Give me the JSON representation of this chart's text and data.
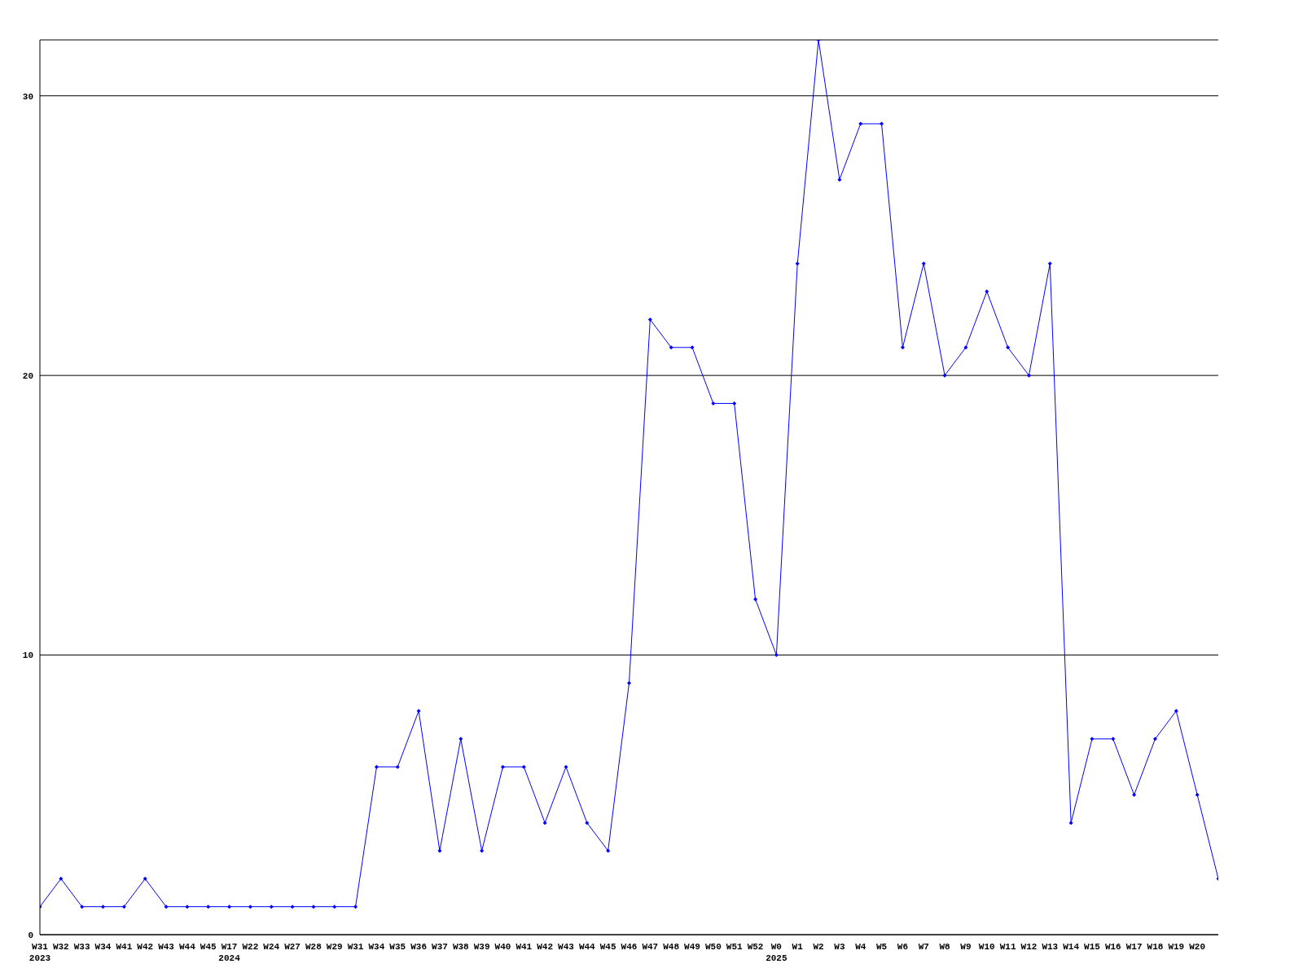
{
  "chart_data": {
    "type": "line",
    "categories": [
      "W31\n2023",
      "W32",
      "W33",
      "W34",
      "W41",
      "W42",
      "W43",
      "W44",
      "W45",
      "W17\n2024",
      "W22",
      "W24",
      "W27",
      "W28",
      "W29",
      "W31",
      "W34",
      "W35",
      "W36",
      "W37",
      "W38",
      "W39",
      "W40",
      "W41",
      "W42",
      "W43",
      "W44",
      "W45",
      "W46",
      "W47",
      "W48",
      "W49",
      "W50",
      "W51",
      "W52",
      "W0\n2025",
      "W1",
      "W2",
      "W3",
      "W4",
      "W5",
      "W6",
      "W7",
      "W8",
      "W9",
      "W10",
      "W11",
      "W12",
      "W13",
      "W14",
      "W15",
      "W16",
      "W17",
      "W18",
      "W19",
      "W20",
      null
    ],
    "series": [
      {
        "color": "#0000ff",
        "values": [
          1,
          2,
          1,
          1,
          1,
          2,
          1,
          1,
          1,
          1,
          1,
          1,
          1,
          1,
          1,
          1,
          6,
          6,
          8,
          3,
          7,
          3,
          6,
          6,
          4,
          6,
          4,
          3,
          9,
          22,
          21,
          21,
          19,
          19,
          12,
          10,
          24,
          32,
          27,
          29,
          29,
          21,
          24,
          20,
          21,
          23,
          21,
          20,
          24,
          4,
          7,
          7,
          5,
          7,
          8,
          5,
          2
        ]
      }
    ],
    "ylim": [
      0,
      32
    ],
    "yticks": [
      0,
      10,
      20,
      30
    ],
    "grid": "y",
    "marker": "diamond",
    "line_style": "solid"
  }
}
